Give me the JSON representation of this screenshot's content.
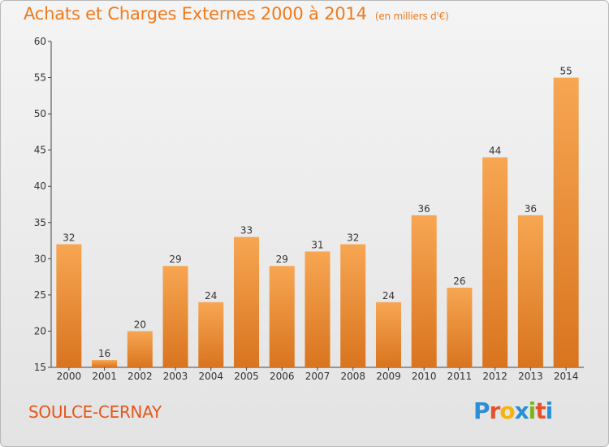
{
  "header": {
    "title": "Achats et Charges Externes 2000 à 2014",
    "unit": "(en milliers d'€)"
  },
  "footer": {
    "commune": "SOULCE-CERNAY",
    "logo_letters": [
      "P",
      "r",
      "o",
      "x",
      "i",
      "t",
      "i"
    ],
    "logo_colors": [
      "#2a8fd6",
      "#e8502a",
      "#f2b40e",
      "#2a8fd6",
      "#7ab51d",
      "#e8502a",
      "#2a8fd6"
    ]
  },
  "chart_data": {
    "type": "bar",
    "title": "Achats et Charges Externes 2000 à 2014",
    "subtitle": "(en milliers d'€)",
    "categories": [
      "2000",
      "2001",
      "2002",
      "2003",
      "2004",
      "2005",
      "2006",
      "2007",
      "2008",
      "2009",
      "2010",
      "2011",
      "2012",
      "2013",
      "2014"
    ],
    "values": [
      32,
      16,
      20,
      29,
      24,
      33,
      29,
      31,
      32,
      24,
      36,
      26,
      44,
      36,
      55
    ],
    "ylim": [
      15,
      60
    ],
    "yticks": [
      15,
      20,
      25,
      30,
      35,
      40,
      45,
      50,
      55,
      60
    ],
    "grid": false,
    "bar_color": "#f29a3c"
  }
}
